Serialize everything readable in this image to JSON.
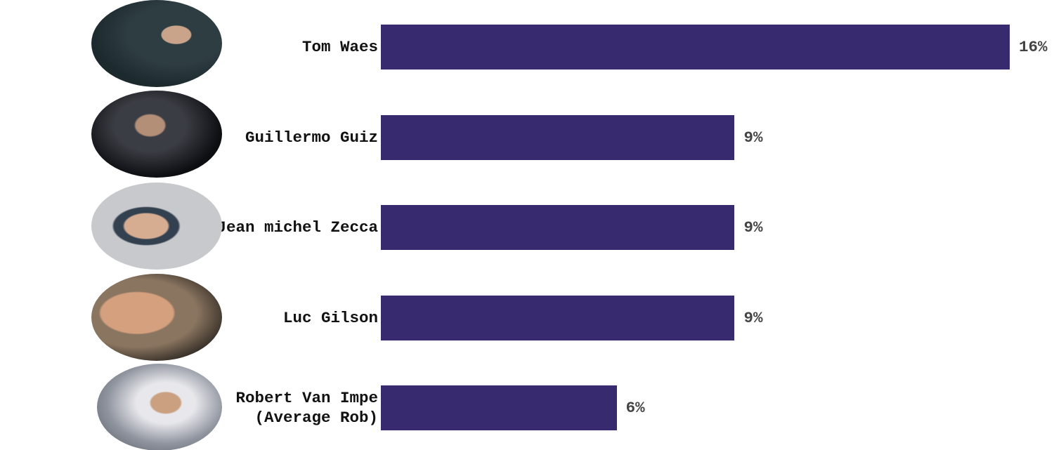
{
  "chart_data": {
    "type": "bar",
    "orientation": "horizontal",
    "categories": [
      "Tom Waes",
      "Guillermo Guiz",
      "Jean michel Zecca",
      "Luc Gilson",
      "Robert Van Impe (Average Rob)"
    ],
    "values": [
      16,
      9,
      9,
      9,
      6
    ],
    "value_labels": [
      "16%",
      "9%",
      "9%",
      "9%",
      "6%"
    ],
    "color": "#372a6e",
    "xlim": [
      0,
      16
    ]
  }
}
